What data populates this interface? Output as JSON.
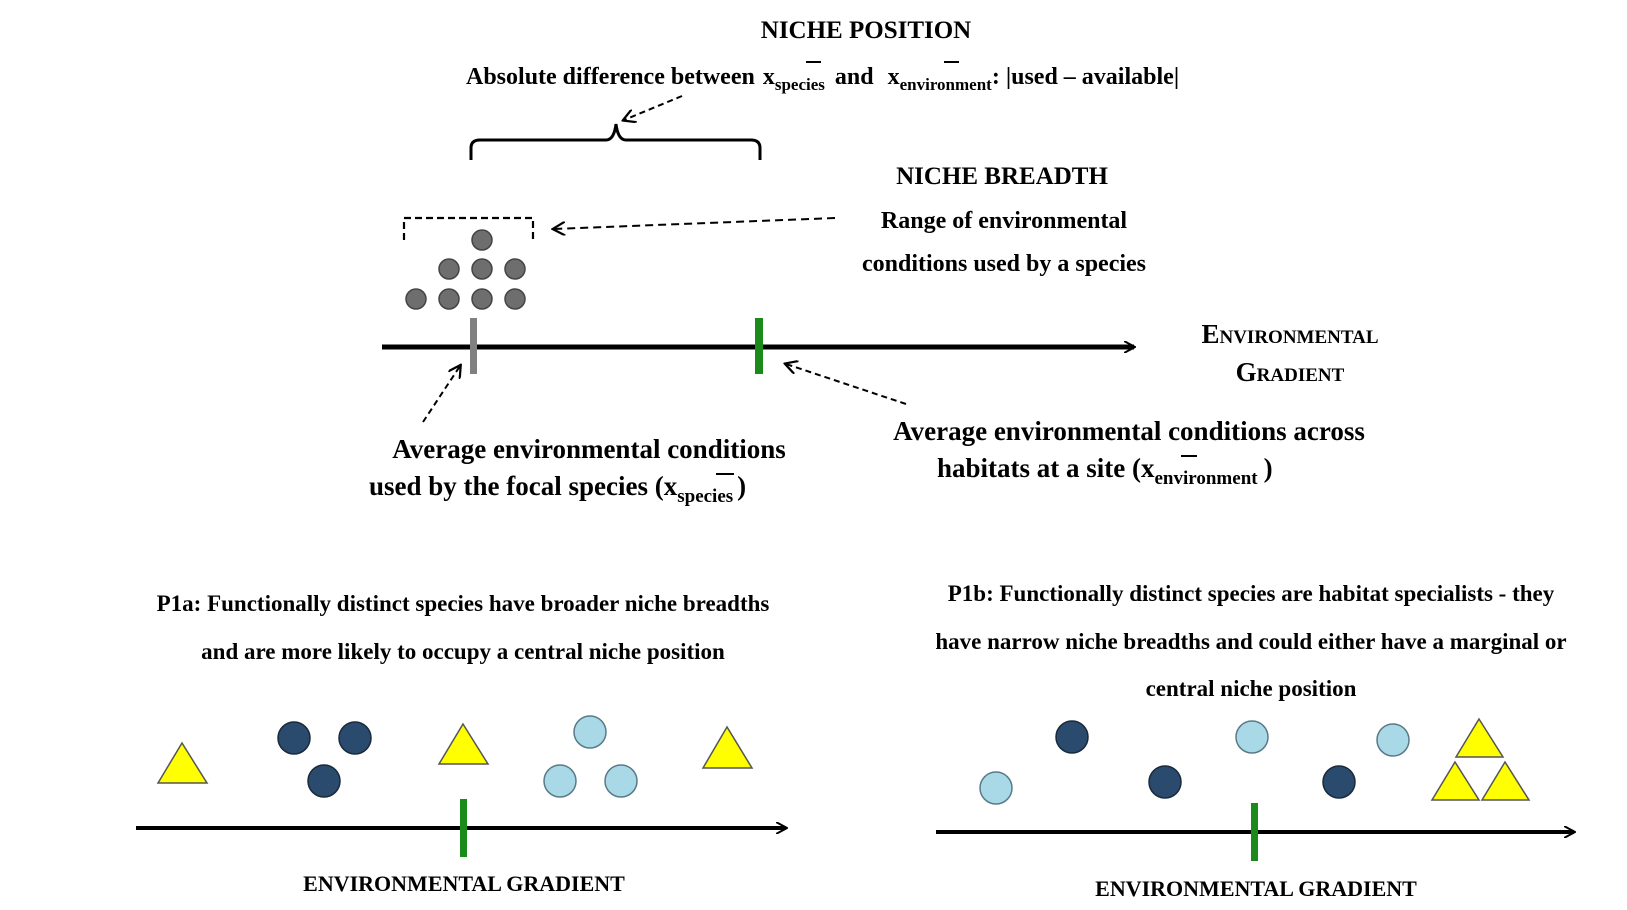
{
  "colors": {
    "axis": "#000000",
    "species_mean_marker": "#808080",
    "environment_mean_marker": "#1a8a1a",
    "dark_circle": "#2a4a6e",
    "light_circle": "#a9d8e6",
    "triangle": "#ffff00",
    "gray_dot": "#6e6e6e"
  },
  "top_panel": {
    "niche_position": {
      "title": "NICHE POSITION",
      "desc_prefix": "Absolute difference between",
      "x": "x",
      "sub_species": "species",
      "and": "and",
      "sub_environment": "environment",
      "desc_suffix": ": |used – available|"
    },
    "niche_breadth": {
      "title": "NICHE BREADTH",
      "line1": "Range of environmental",
      "line2": "conditions used by a species"
    },
    "axis_label_line1": "Environmental",
    "axis_label_line2": "Gradient",
    "species_mean": {
      "line1": "Average environmental conditions",
      "line2_prefix": "used by the focal species (",
      "x": "x",
      "sub": "species",
      "close": ")"
    },
    "environment_mean": {
      "line1": "Average environmental conditions across",
      "line2_prefix": "habitats at a site (",
      "x": "x",
      "sub": "environment",
      "close": ")"
    }
  },
  "panel_p1a": {
    "caption_line1": "P1a: Functionally distinct species have broader niche breadths",
    "caption_line2": "and are more likely to occupy a central niche position",
    "axis_label": "ENVIRONMENTAL GRADIENT"
  },
  "panel_p1b": {
    "caption_line1": "P1b: Functionally distinct species are habitat specialists - they",
    "caption_line2": "have narrow niche breadths and could either have a marginal or",
    "caption_line3": "central niche position",
    "axis_label": "ENVIRONMENTAL GRADIENT"
  }
}
